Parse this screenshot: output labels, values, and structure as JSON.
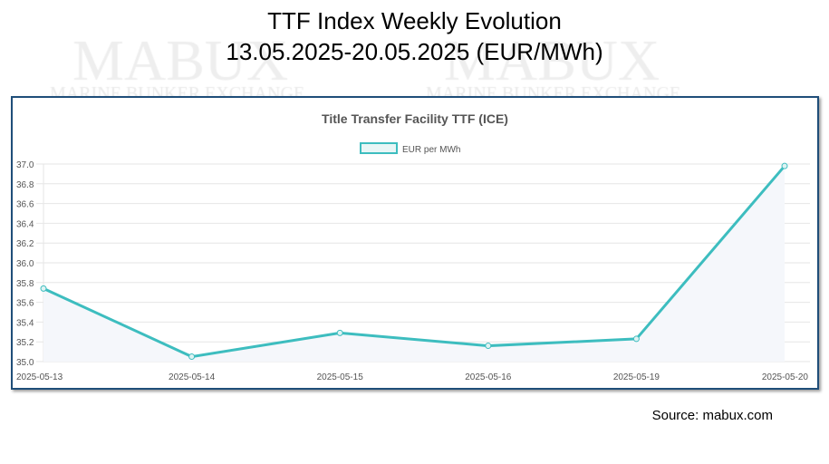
{
  "slide": {
    "title_line1": "TTF Index Weekly Evolution",
    "title_line2": "13.05.2025-20.05.2025 (EUR/MWh)",
    "source": "Source: mabux.com",
    "watermark": "MABUX MARINE BUNKER EXCHANGE"
  },
  "chart_data": {
    "type": "line",
    "title": "Title Transfer Facility TTF (ICE)",
    "categories": [
      "2025-05-13",
      "2025-05-14",
      "2025-05-15",
      "2025-05-16",
      "2025-05-19",
      "2025-05-20"
    ],
    "series": [
      {
        "name": "EUR per MWh",
        "values": [
          35.74,
          35.05,
          35.29,
          35.16,
          35.23,
          36.98
        ],
        "color": "#3dbdbf"
      }
    ],
    "ylim": [
      35.0,
      37.0
    ],
    "yticks": [
      "35.0",
      "35.2",
      "35.4",
      "35.6",
      "35.8",
      "36.0",
      "36.2",
      "36.4",
      "36.6",
      "36.8",
      "37.0"
    ],
    "grid": true,
    "legend": "top-center",
    "fill_color": "#f5f7fb"
  }
}
